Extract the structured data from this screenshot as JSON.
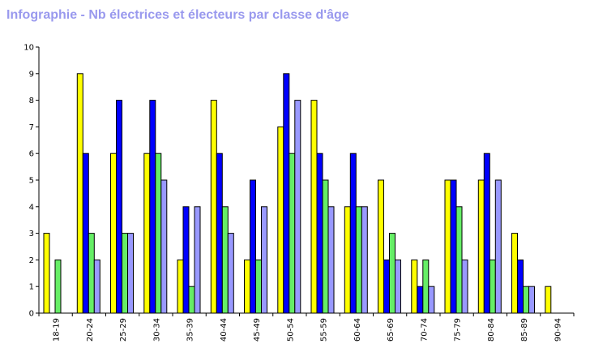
{
  "chart_data": {
    "type": "bar",
    "title": "Infographie - Nb électrices et électeurs par classe d'âge",
    "xlabel": "",
    "ylabel": "",
    "ylim": [
      0,
      10
    ],
    "yticks": [
      0,
      1,
      2,
      3,
      4,
      5,
      6,
      7,
      8,
      9,
      10
    ],
    "grid": false,
    "legend": "none",
    "categories": [
      "18-19",
      "20-24",
      "25-29",
      "30-34",
      "35-39",
      "40-44",
      "45-49",
      "50-54",
      "55-59",
      "60-64",
      "65-69",
      "70-74",
      "75-79",
      "80-84",
      "85-89",
      "90-94"
    ],
    "series": [
      {
        "color": "#ffff00",
        "values": [
          3,
          9,
          6,
          6,
          2,
          8,
          2,
          7,
          8,
          4,
          5,
          2,
          5,
          5,
          3,
          1
        ]
      },
      {
        "color": "#0000ff",
        "values": [
          0,
          6,
          8,
          8,
          4,
          6,
          5,
          9,
          6,
          6,
          2,
          1,
          5,
          6,
          2,
          0
        ]
      },
      {
        "color": "#66ee66",
        "values": [
          2,
          3,
          3,
          6,
          1,
          4,
          2,
          6,
          5,
          4,
          3,
          2,
          4,
          2,
          1,
          0
        ]
      },
      {
        "color": "#9999ff",
        "values": [
          0,
          2,
          3,
          5,
          4,
          3,
          4,
          8,
          4,
          4,
          2,
          1,
          2,
          5,
          1,
          0
        ]
      }
    ]
  }
}
